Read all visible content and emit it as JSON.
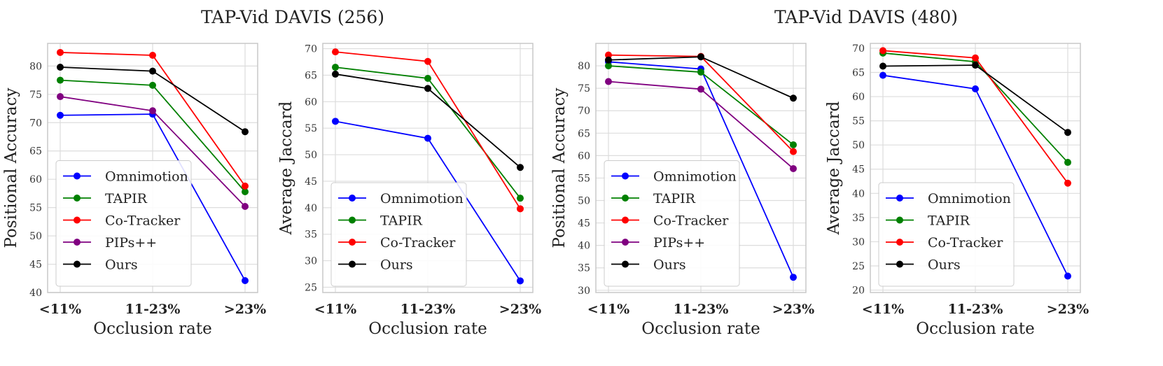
{
  "titles": [
    "TAP-Vid DAVIS (256)",
    "TAP-Vid DAVIS (480)"
  ],
  "colors": {
    "Omnimotion": "#0000ff",
    "TAPIR": "#008000",
    "Co-Tracker": "#ff0000",
    "PIPs++": "#800080",
    "Ours": "#000000"
  },
  "chart_data": [
    {
      "type": "line",
      "title": "TAP-Vid DAVIS (256)",
      "xlabel": "Occlusion rate",
      "ylabel": "Positional Accuracy",
      "categories": [
        "<11%",
        "11-23%",
        ">23%"
      ],
      "ylim": [
        40,
        84
      ],
      "yticks": [
        40,
        45,
        50,
        55,
        60,
        65,
        70,
        75,
        80
      ],
      "legend": "lower-left",
      "series": [
        {
          "name": "Omnimotion",
          "values": [
            71.3,
            71.5,
            42.1
          ]
        },
        {
          "name": "TAPIR",
          "values": [
            77.5,
            76.6,
            57.8
          ]
        },
        {
          "name": "Co-Tracker",
          "values": [
            82.4,
            81.9,
            58.8
          ]
        },
        {
          "name": "PIPs++",
          "values": [
            74.6,
            72.1,
            55.2
          ]
        },
        {
          "name": "Ours",
          "values": [
            79.8,
            79.1,
            68.4
          ]
        }
      ]
    },
    {
      "type": "line",
      "title": "",
      "xlabel": "Occlusion rate",
      "ylabel": "Average Jaccard",
      "categories": [
        "<11%",
        "11-23%",
        ">23%"
      ],
      "ylim": [
        24,
        71
      ],
      "yticks": [
        25,
        30,
        35,
        40,
        45,
        50,
        55,
        60,
        65,
        70
      ],
      "legend": "lower-left",
      "series": [
        {
          "name": "Omnimotion",
          "values": [
            56.3,
            53.1,
            26.2
          ]
        },
        {
          "name": "TAPIR",
          "values": [
            66.5,
            64.4,
            41.8
          ]
        },
        {
          "name": "Co-Tracker",
          "values": [
            69.4,
            67.6,
            39.8
          ]
        },
        {
          "name": "Ours",
          "values": [
            65.2,
            62.5,
            47.6
          ]
        }
      ]
    },
    {
      "type": "line",
      "title": "TAP-Vid DAVIS (480)",
      "xlabel": "Occlusion rate",
      "ylabel": "Positional Accuracy",
      "categories": [
        "<11%",
        "11-23%",
        ">23%"
      ],
      "ylim": [
        29.5,
        85
      ],
      "yticks": [
        30,
        35,
        40,
        45,
        50,
        55,
        60,
        65,
        70,
        75,
        80
      ],
      "legend": "lower-left",
      "series": [
        {
          "name": "Omnimotion",
          "values": [
            80.9,
            79.3,
            32.9
          ]
        },
        {
          "name": "TAPIR",
          "values": [
            80.0,
            78.6,
            62.4
          ]
        },
        {
          "name": "Co-Tracker",
          "values": [
            82.4,
            82.1,
            60.9
          ]
        },
        {
          "name": "PIPs++",
          "values": [
            76.5,
            74.8,
            57.1
          ]
        },
        {
          "name": "Ours",
          "values": [
            81.3,
            82.0,
            72.8
          ]
        }
      ]
    },
    {
      "type": "line",
      "title": "",
      "xlabel": "Occlusion rate",
      "ylabel": "Average Jaccard",
      "categories": [
        "<11%",
        "11-23%",
        ">23%"
      ],
      "ylim": [
        19.5,
        71
      ],
      "yticks": [
        20,
        25,
        30,
        35,
        40,
        45,
        50,
        55,
        60,
        65,
        70
      ],
      "legend": "lower-left",
      "series": [
        {
          "name": "Omnimotion",
          "values": [
            64.4,
            61.6,
            22.9
          ]
        },
        {
          "name": "TAPIR",
          "values": [
            69.0,
            67.2,
            46.4
          ]
        },
        {
          "name": "Co-Tracker",
          "values": [
            69.5,
            68.0,
            42.1
          ]
        },
        {
          "name": "Ours",
          "values": [
            66.3,
            66.5,
            52.6
          ]
        }
      ]
    }
  ]
}
